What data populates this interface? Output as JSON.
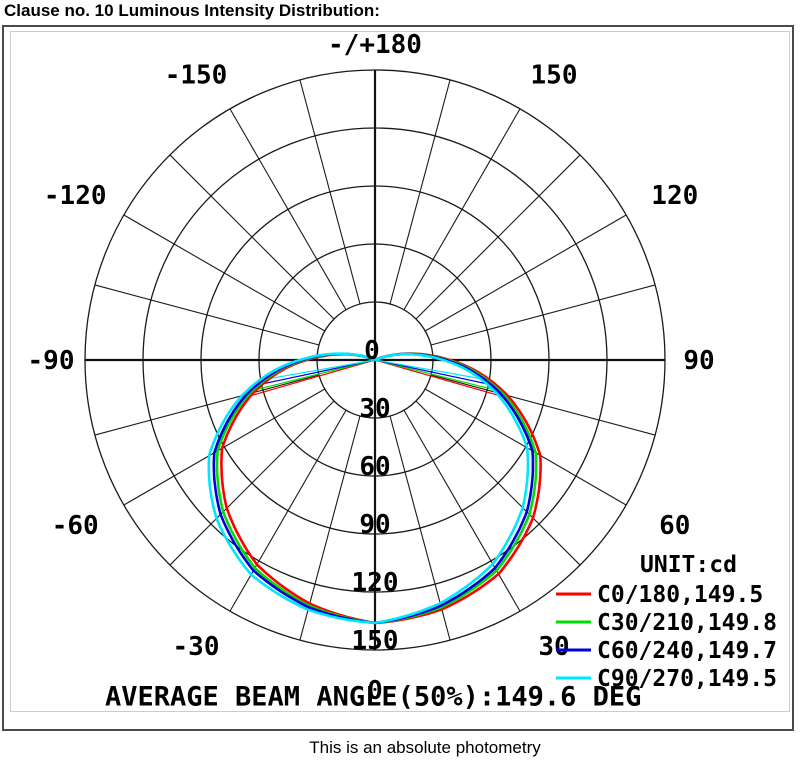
{
  "page": {
    "title": "Clause no. 10 Luminous Intensity Distribution:",
    "footer": "This is an absolute photometry"
  },
  "chart_data": {
    "type": "polar",
    "title": "Luminous Intensity Distribution",
    "unit_label": "UNIT:cd",
    "average_beam_label": "AVERAGE BEAM ANGLE(50%):149.6 DEG",
    "average_beam_angle_deg": 149.6,
    "grid": {
      "rings_cd": [
        30,
        60,
        90,
        120,
        150
      ],
      "spoke_step_deg": 15,
      "radial_tick_labels": [
        "0",
        "30",
        "60",
        "90",
        "120",
        "150"
      ]
    },
    "angle_labels": [
      {
        "angle_deg": 180,
        "text": "-/+180"
      },
      {
        "angle_deg": -150,
        "text": "-150"
      },
      {
        "angle_deg": 150,
        "text": "150"
      },
      {
        "angle_deg": -120,
        "text": "-120"
      },
      {
        "angle_deg": 120,
        "text": "120"
      },
      {
        "angle_deg": -90,
        "text": "-90"
      },
      {
        "angle_deg": 90,
        "text": "90"
      },
      {
        "angle_deg": -60,
        "text": "-60"
      },
      {
        "angle_deg": 60,
        "text": "60"
      },
      {
        "angle_deg": -30,
        "text": "-30"
      },
      {
        "angle_deg": 30,
        "text": "30"
      },
      {
        "angle_deg": 0,
        "text": "0"
      }
    ],
    "profile": {
      "angles_deg": [
        0,
        15,
        30,
        45,
        60,
        75,
        85,
        90,
        95,
        100,
        105,
        110,
        114
      ],
      "intensity_cd": [
        136,
        132,
        125,
        112,
        95,
        68,
        48,
        37,
        27,
        18,
        10,
        4,
        0
      ]
    },
    "series": [
      {
        "label": "C0/180,149.5",
        "color": "#ff0000",
        "beam_angle_deg": 149.5,
        "bias": 0.045,
        "tail_angle_deg": 74
      },
      {
        "label": "C30/210,149.8",
        "color": "#00dd00",
        "beam_angle_deg": 149.8,
        "bias": 0.012,
        "tail_angle_deg": 76
      },
      {
        "label": "C60/240,149.7",
        "color": "#0000dd",
        "beam_angle_deg": 149.7,
        "bias": -0.012,
        "tail_angle_deg": 78
      },
      {
        "label": "C90/270,149.5",
        "color": "#00e6ff",
        "beam_angle_deg": 149.5,
        "bias": -0.05,
        "tail_angle_deg": 80
      }
    ]
  }
}
